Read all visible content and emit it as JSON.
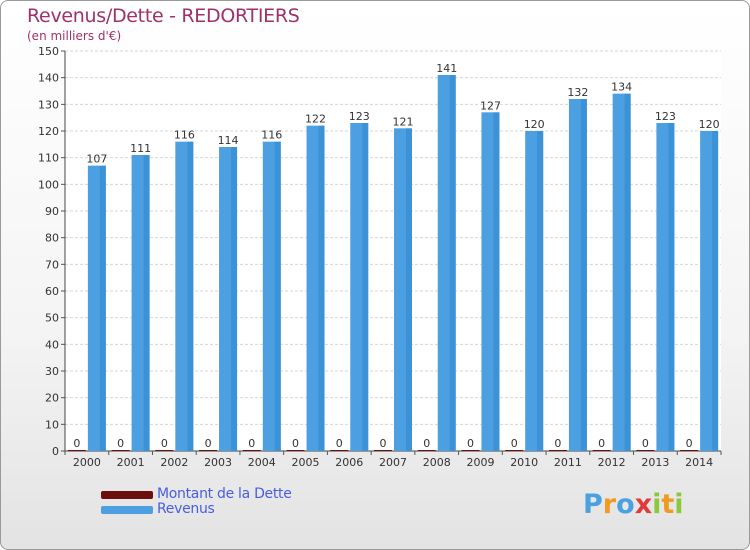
{
  "chart_data": {
    "type": "bar",
    "title": "Revenus/Dette - REDORTIERS",
    "subtitle": "(en milliers d'€)",
    "categories": [
      "2000",
      "2001",
      "2002",
      "2003",
      "2004",
      "2005",
      "2006",
      "2007",
      "2008",
      "2009",
      "2010",
      "2011",
      "2012",
      "2013",
      "2014"
    ],
    "series": [
      {
        "name": "Montant de la Dette",
        "color": "#6b0f0f",
        "values": [
          0,
          0,
          0,
          0,
          0,
          0,
          0,
          0,
          0,
          0,
          0,
          0,
          0,
          0,
          0
        ]
      },
      {
        "name": "Revenus",
        "color": "#4c9fe0",
        "values": [
          107,
          111,
          116,
          114,
          116,
          122,
          123,
          121,
          141,
          127,
          120,
          132,
          134,
          123,
          120
        ]
      }
    ],
    "ylim": [
      0,
      150
    ],
    "yticks": [
      0,
      10,
      20,
      30,
      40,
      50,
      60,
      70,
      80,
      90,
      100,
      110,
      120,
      130,
      140,
      150
    ],
    "grid": true,
    "legend_position": "bottom-left"
  },
  "logo": {
    "letters": [
      {
        "ch": "P",
        "color": "#4aa0e0"
      },
      {
        "ch": "r",
        "color": "#f09a20"
      },
      {
        "ch": "o",
        "color": "#4aa0e0"
      },
      {
        "ch": "x",
        "color": "#e03a3a"
      },
      {
        "ch": "i",
        "color": "#8cc83c"
      },
      {
        "ch": "t",
        "color": "#f09a20"
      },
      {
        "ch": "i",
        "color": "#8cc83c"
      }
    ]
  }
}
